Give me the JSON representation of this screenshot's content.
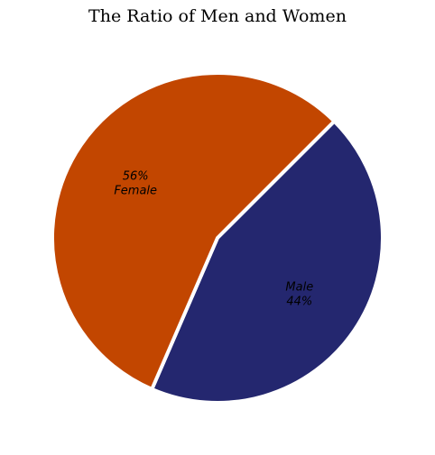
{
  "chart_data": {
    "type": "pie",
    "title": "The Ratio of Men and Women",
    "slices": [
      {
        "label": "Male",
        "value": 44,
        "value_text": "44%",
        "color": "#24276f",
        "label_order": "name-first"
      },
      {
        "label": "Female",
        "value": 56,
        "value_text": "56%",
        "color": "#c24600",
        "label_order": "value-first"
      }
    ],
    "start_angle_deg": 45,
    "direction": "clockwise",
    "separator_color": "#ffffff"
  }
}
